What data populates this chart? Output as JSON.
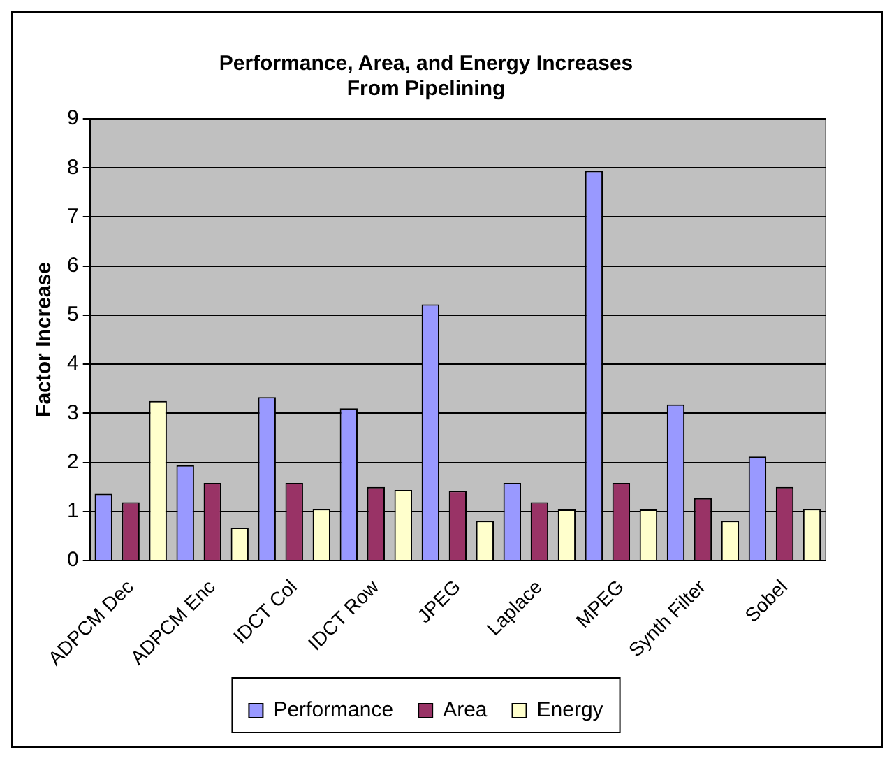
{
  "chart_data": {
    "type": "bar",
    "title": "Performance, Area, and Energy Increases\nFrom Pipelining",
    "ylabel": "Factor Increase",
    "categories": [
      "ADPCM Dec",
      "ADPCM Enc",
      "IDCT Col",
      "IDCT Row",
      "JPEG",
      "Laplace",
      "MPEG",
      "Synth Filter",
      "Sobel"
    ],
    "series": [
      {
        "name": "Performance",
        "color": "#9999ff",
        "values": [
          1.36,
          1.94,
          3.33,
          3.1,
          5.22,
          1.58,
          7.94,
          3.18,
          2.12
        ]
      },
      {
        "name": "Area",
        "color": "#993366",
        "values": [
          1.19,
          1.58,
          1.58,
          1.5,
          1.42,
          1.19,
          1.58,
          1.27,
          1.5
        ]
      },
      {
        "name": "Energy",
        "color": "#ffffcc",
        "values": [
          3.25,
          0.67,
          1.05,
          1.44,
          0.81,
          1.04,
          1.04,
          0.81,
          1.05
        ]
      }
    ],
    "ylim": [
      0,
      9
    ],
    "yticks": [
      0,
      1,
      2,
      3,
      4,
      5,
      6,
      7,
      8,
      9
    ],
    "grid": "y",
    "legend": "bottom"
  }
}
